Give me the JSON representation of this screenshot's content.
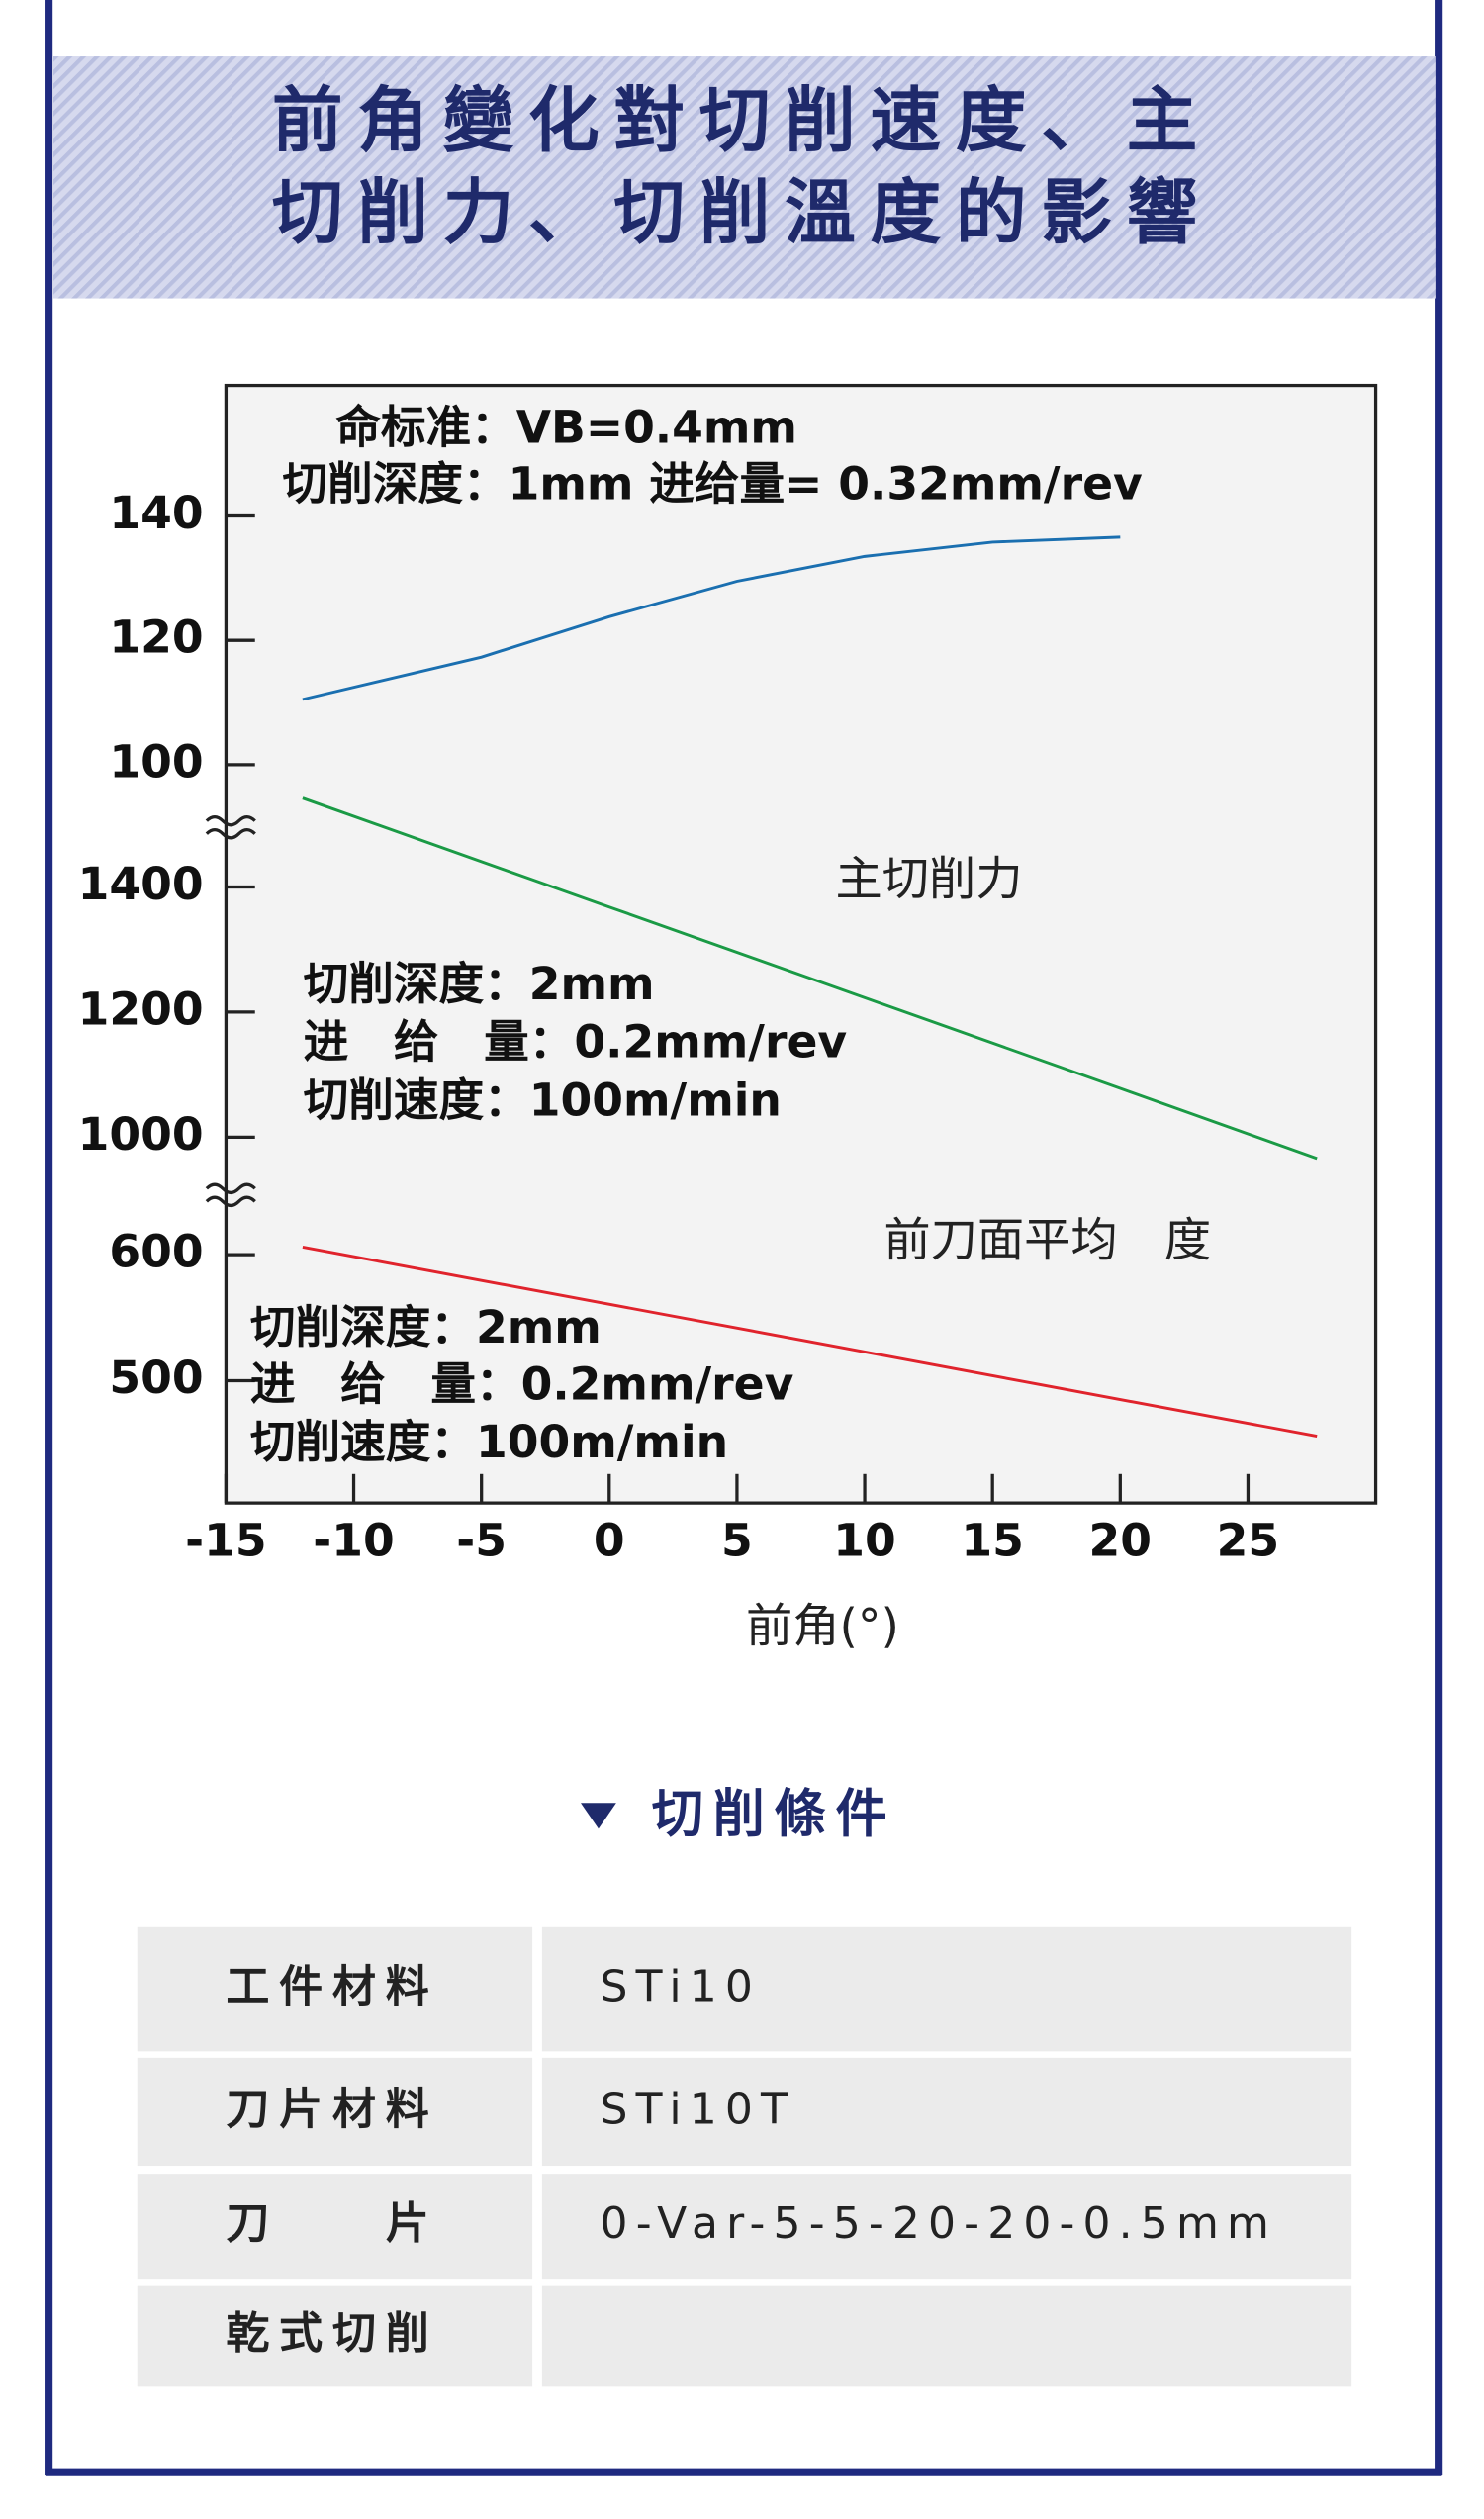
{
  "title": [
    "前角變化對切削速度、主",
    "切削力、切削溫度的影響"
  ],
  "chart_data": [
    {
      "type": "line",
      "xlim": [
        -15,
        30
      ],
      "ylim": [
        92,
        161
      ],
      "yticks": [
        100,
        120,
        140
      ],
      "annotations": [
        "命标准：VB=0.4mm",
        "切削深度：1mm  进给量= 0.32mm/rev"
      ],
      "x": [
        -12,
        -5,
        0,
        5,
        10,
        15,
        20
      ],
      "series": [
        {
          "color": "#1a6fb0",
          "values": [
            110.5,
            117.3,
            123.8,
            129.5,
            133.5,
            135.8,
            136.6
          ]
        }
      ]
    },
    {
      "type": "line",
      "xlim": [
        -15,
        30
      ],
      "ylim": [
        923,
        1516
      ],
      "yticks": [
        1000,
        1200,
        1400
      ],
      "annotations": [
        "切削深度：2mm",
        "进　给　量：0.2mm/rev",
        "切削速度：100m/min"
      ],
      "x": [
        -12,
        0,
        10,
        20,
        27.7
      ],
      "series": [
        {
          "name": "主切削力",
          "color": "#1a9a45",
          "values": [
            1542,
            1368,
            1223,
            1078,
            966
          ]
        }
      ]
    },
    {
      "type": "line",
      "xlim": [
        -15,
        30
      ],
      "ylim": [
        403,
        655
      ],
      "yticks": [
        500,
        600
      ],
      "xticks": [
        -15,
        -10,
        -5,
        0,
        5,
        10,
        15,
        20,
        25
      ],
      "xlabel": "前角(°)",
      "annotations": [
        "切削深度：2mm",
        "进　给　量：0.2mm/rev",
        "切削速度：100m/min"
      ],
      "x": [
        -12,
        27.7
      ],
      "series": [
        {
          "name": "前刀面平均　度",
          "color": "#e0232c",
          "values": [
            606,
            456
          ]
        }
      ]
    }
  ],
  "conditions": {
    "heading": "切削條件",
    "rows": [
      [
        "工件材料",
        "STi10"
      ],
      [
        "刀片材料",
        "STi10T"
      ],
      [
        "刀　　片",
        "0-Var-5-5-20-20-0.5mm"
      ],
      [
        "乾式切削"
      ]
    ]
  }
}
